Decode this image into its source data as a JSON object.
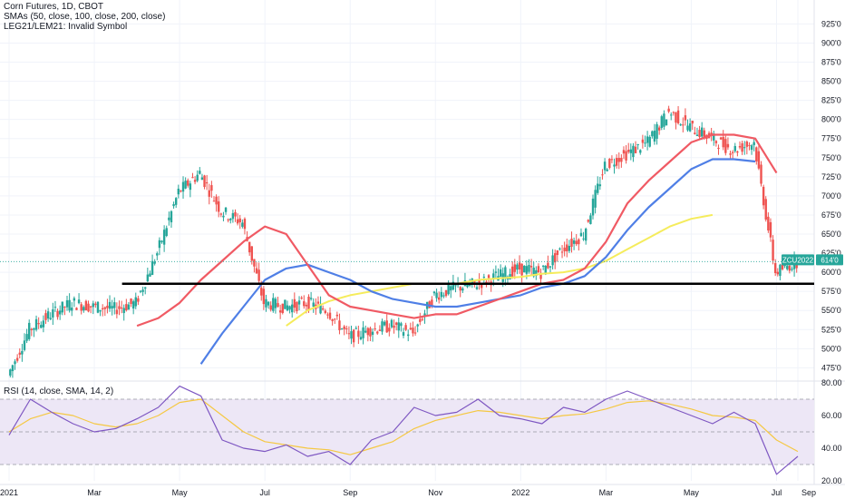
{
  "legend": {
    "line1": "Corn Futures, 1D, CBOT",
    "line2": "SMAs (50, close, 100, close, 200, close)",
    "line3": "LEG21/LEM21: Invalid Symbol"
  },
  "rsi_legend": "RSI (14, close, SMA, 14, 2)",
  "symbol_badge": "ZCU2022",
  "price_badge": "614'0",
  "colors": {
    "up": "#26a69a",
    "down": "#ef5350",
    "sma50": "#f05a64",
    "sma100": "#4f7fe6",
    "sma200": "#f5ec5c",
    "rsi": "#7e57c2",
    "rsi_ma": "#f5c842",
    "rsi_band": "#ede7f6",
    "support": "#000000"
  },
  "chart_data": [
    {
      "type": "candlestick",
      "title": "Corn Futures, 1D, CBOT",
      "y_ticks": [
        "925'0",
        "900'0",
        "875'0",
        "850'0",
        "825'0",
        "800'0",
        "775'0",
        "750'0",
        "725'0",
        "700'0",
        "675'0",
        "650'0",
        "625'0",
        "600'0",
        "575'0",
        "550'0",
        "525'0",
        "500'0",
        "475'0"
      ],
      "ylim": [
        460,
        935
      ],
      "x_ticks": [
        "2021",
        "Mar",
        "May",
        "Jul",
        "Sep",
        "Nov",
        "2022",
        "Mar",
        "May",
        "Jul",
        "Sep"
      ],
      "support_level": 585,
      "close_series": [
        {
          "date": "2021-01",
          "close": 465
        },
        {
          "date": "2021-01-15",
          "close": 525
        },
        {
          "date": "2021-02",
          "close": 545
        },
        {
          "date": "2021-02-15",
          "close": 560
        },
        {
          "date": "2021-03",
          "close": 555
        },
        {
          "date": "2021-03-15",
          "close": 552
        },
        {
          "date": "2021-04",
          "close": 560
        },
        {
          "date": "2021-04-15",
          "close": 625
        },
        {
          "date": "2021-05",
          "close": 705
        },
        {
          "date": "2021-05-15",
          "close": 730
        },
        {
          "date": "2021-06",
          "close": 680
        },
        {
          "date": "2021-06-15",
          "close": 665
        },
        {
          "date": "2021-07",
          "close": 560
        },
        {
          "date": "2021-07-15",
          "close": 555
        },
        {
          "date": "2021-08",
          "close": 560
        },
        {
          "date": "2021-08-15",
          "close": 550
        },
        {
          "date": "2021-09",
          "close": 515
        },
        {
          "date": "2021-09-15",
          "close": 525
        },
        {
          "date": "2021-10",
          "close": 530
        },
        {
          "date": "2021-10-15",
          "close": 520
        },
        {
          "date": "2021-11",
          "close": 570
        },
        {
          "date": "2021-11-15",
          "close": 580
        },
        {
          "date": "2021-12",
          "close": 585
        },
        {
          "date": "2021-12-15",
          "close": 595
        },
        {
          "date": "2022-01",
          "close": 605
        },
        {
          "date": "2022-01-15",
          "close": 600
        },
        {
          "date": "2022-02",
          "close": 630
        },
        {
          "date": "2022-02-15",
          "close": 650
        },
        {
          "date": "2022-03",
          "close": 740
        },
        {
          "date": "2022-03-15",
          "close": 755
        },
        {
          "date": "2022-04",
          "close": 770
        },
        {
          "date": "2022-04-15",
          "close": 810
        },
        {
          "date": "2022-05",
          "close": 790
        },
        {
          "date": "2022-05-15",
          "close": 775
        },
        {
          "date": "2022-06",
          "close": 760
        },
        {
          "date": "2022-06-15",
          "close": 770
        },
        {
          "date": "2022-07",
          "close": 600
        },
        {
          "date": "2022-07-15",
          "close": 614
        }
      ],
      "sma50": [
        null,
        null,
        null,
        null,
        null,
        null,
        530,
        540,
        560,
        590,
        615,
        640,
        660,
        650,
        610,
        570,
        555,
        550,
        545,
        540,
        545,
        545,
        555,
        565,
        575,
        585,
        590,
        605,
        640,
        690,
        720,
        745,
        770,
        780,
        780,
        775,
        730,
        null
      ],
      "sma100": [
        null,
        null,
        null,
        null,
        null,
        null,
        null,
        null,
        null,
        480,
        520,
        555,
        590,
        605,
        610,
        600,
        590,
        575,
        565,
        560,
        555,
        555,
        560,
        565,
        570,
        580,
        585,
        595,
        620,
        655,
        685,
        710,
        735,
        748,
        748,
        745,
        null,
        null
      ],
      "sma200": [
        null,
        null,
        null,
        null,
        null,
        null,
        null,
        null,
        null,
        null,
        null,
        null,
        null,
        530,
        550,
        562,
        570,
        575,
        580,
        585,
        585,
        585,
        590,
        592,
        594,
        598,
        600,
        605,
        615,
        630,
        645,
        660,
        670,
        675,
        null,
        null,
        null,
        null
      ],
      "last_price": 614
    },
    {
      "type": "line",
      "title": "RSI (14, close, SMA, 14, 2)",
      "y_ticks": [
        "80.00",
        "60.00",
        "40.00",
        "20.00"
      ],
      "ylim": [
        20,
        80
      ],
      "band": [
        30,
        70
      ],
      "rsi": [
        48,
        70,
        62,
        55,
        50,
        52,
        58,
        65,
        78,
        72,
        45,
        40,
        38,
        42,
        35,
        38,
        30,
        45,
        50,
        65,
        60,
        62,
        70,
        60,
        58,
        55,
        65,
        62,
        70,
        75,
        70,
        65,
        60,
        55,
        62,
        55,
        24,
        35
      ],
      "rsi_ma": [
        50,
        58,
        62,
        60,
        55,
        53,
        55,
        60,
        68,
        70,
        60,
        50,
        44,
        42,
        40,
        39,
        36,
        40,
        44,
        52,
        57,
        60,
        63,
        62,
        60,
        58,
        60,
        61,
        64,
        68,
        69,
        67,
        64,
        60,
        59,
        57,
        45,
        38
      ]
    }
  ]
}
